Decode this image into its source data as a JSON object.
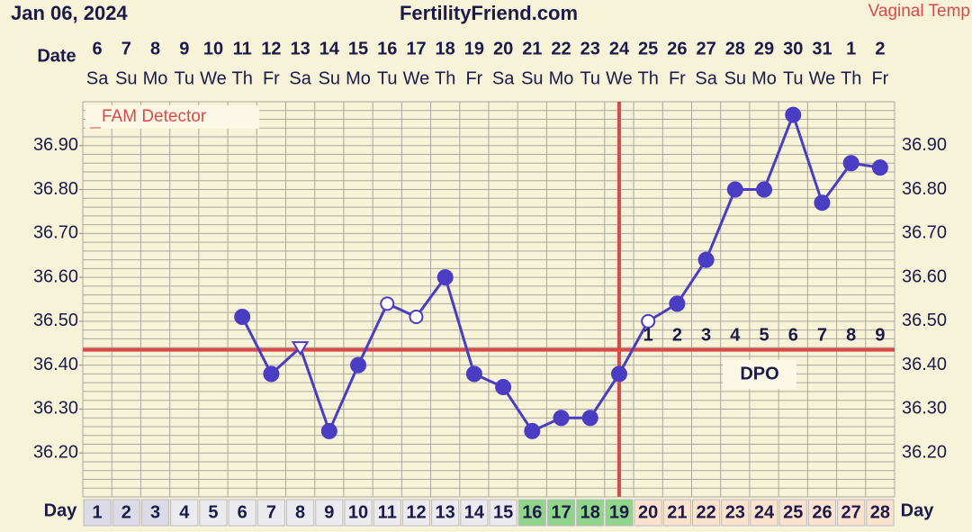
{
  "chart_data": {
    "type": "line",
    "chart_date": "Jan 06, 2024",
    "title": "FertilityFriend.com",
    "temp_type": "Vaginal Temp",
    "date_axis_label": "Date",
    "day_axis_label": "Day",
    "detector_label": "FAM Detector",
    "dpo_title": "DPO",
    "x": [
      1,
      2,
      3,
      4,
      5,
      6,
      7,
      8,
      9,
      10,
      11,
      12,
      13,
      14,
      15,
      16,
      17,
      18,
      19,
      20,
      21,
      22,
      23,
      24,
      25,
      26,
      27,
      28
    ],
    "dates": [
      6,
      7,
      8,
      9,
      10,
      11,
      12,
      13,
      14,
      15,
      16,
      17,
      18,
      19,
      20,
      21,
      22,
      23,
      24,
      25,
      26,
      27,
      28,
      29,
      30,
      31,
      1,
      2
    ],
    "weekdays": [
      "Sa",
      "Su",
      "Mo",
      "Tu",
      "We",
      "Th",
      "Fr",
      "Sa",
      "Su",
      "Mo",
      "Tu",
      "We",
      "Th",
      "Fr",
      "Sa",
      "Su",
      "Mo",
      "Tu",
      "We",
      "Th",
      "Fr",
      "Sa",
      "Su",
      "Mo",
      "Tu",
      "We",
      "Th",
      "Fr"
    ],
    "series": [
      {
        "color": "#4b3cc4",
        "values": [
          null,
          null,
          null,
          null,
          null,
          36.51,
          36.38,
          36.44,
          36.25,
          36.4,
          36.54,
          36.51,
          36.6,
          36.38,
          36.35,
          36.25,
          36.28,
          36.28,
          36.38,
          36.5,
          36.54,
          36.64,
          36.8,
          36.8,
          36.97,
          36.77,
          36.86,
          36.85
        ],
        "markers": [
          null,
          null,
          null,
          null,
          null,
          "filled",
          "filled",
          "triangle",
          "filled",
          "filled",
          "open",
          "open",
          "filled",
          "filled",
          "filled",
          "filled",
          "filled",
          "filled",
          "filled",
          "open",
          "filled",
          "filled",
          "filled",
          "filled",
          "filled",
          "filled",
          "filled",
          "filled"
        ]
      }
    ],
    "dpo": [
      null,
      null,
      null,
      null,
      null,
      null,
      null,
      null,
      null,
      null,
      null,
      null,
      null,
      null,
      null,
      null,
      null,
      null,
      null,
      1,
      2,
      3,
      4,
      5,
      6,
      7,
      8,
      9
    ],
    "coverline": 36.435,
    "ovulation_day": 19,
    "marker_line_color": "#d9494a",
    "day_colors": [
      "#dcdae6",
      "#dcdae6",
      "#dcdae6",
      "#ebebef",
      "#ebebef",
      "#ebebef",
      "#ebebef",
      "#ebebef",
      "#ebebef",
      "#ebebef",
      "#ebebef",
      "#ebebef",
      "#ebebef",
      "#ebebef",
      "#ebebef",
      "#8fd58a",
      "#8fd58a",
      "#8fd58a",
      "#8fd58a",
      "#fbe2cf",
      "#fbe2cf",
      "#fbe2cf",
      "#fbe2cf",
      "#fbe2cf",
      "#fbe2cf",
      "#fbe2cf",
      "#fbe2cf",
      "#fbe2cf"
    ],
    "xlim": [
      0.5,
      28.5
    ],
    "ylim": [
      36.1,
      37.0
    ],
    "yticks": [
      {
        "value": 36.2,
        "label": "36.20"
      },
      {
        "value": 36.3,
        "label": "36.30"
      },
      {
        "value": 36.4,
        "label": "36.40"
      },
      {
        "value": 36.5,
        "label": "36.50"
      },
      {
        "value": 36.6,
        "label": "36.60"
      },
      {
        "value": 36.7,
        "label": "36.70"
      },
      {
        "value": 36.8,
        "label": "36.80"
      },
      {
        "value": 36.9,
        "label": "36.90"
      }
    ],
    "grid_yticks": [
      36.1,
      36.12,
      36.14,
      36.16,
      36.18,
      36.2,
      36.22,
      36.24,
      36.26,
      36.28,
      36.3,
      36.32,
      36.34,
      36.36,
      36.38,
      36.4,
      36.42,
      36.44,
      36.46,
      36.48,
      36.5,
      36.52,
      36.54,
      36.56,
      36.58,
      36.6,
      36.62,
      36.64,
      36.66,
      36.68,
      36.7,
      36.72,
      36.74,
      36.76,
      36.78,
      36.8,
      36.82,
      36.84,
      36.86,
      36.88,
      36.9,
      36.92,
      36.94,
      36.96,
      36.98,
      37.0
    ],
    "grid": true
  }
}
